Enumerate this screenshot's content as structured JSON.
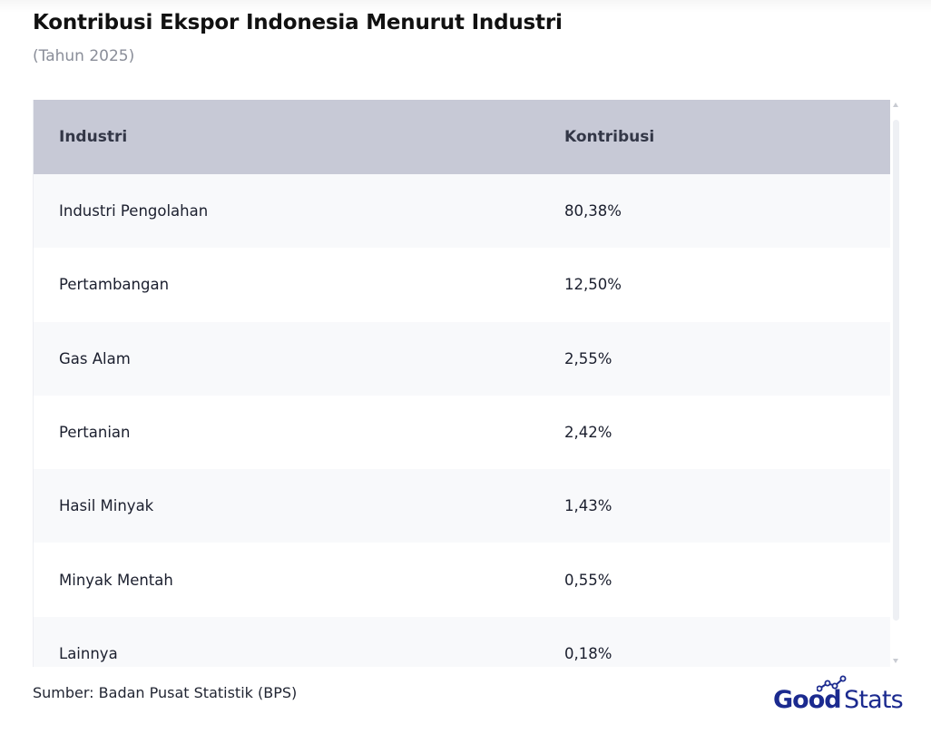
{
  "header": {
    "title": "Kontribusi Ekspor Indonesia Menurut Industri",
    "subtitle": "(Tahun 2025)"
  },
  "table": {
    "columns": [
      "Industri",
      "Kontribusi"
    ],
    "rows": [
      {
        "industri": "Industri Pengolahan",
        "kontribusi": "80,38%"
      },
      {
        "industri": "Pertambangan",
        "kontribusi": "12,50%"
      },
      {
        "industri": "Gas Alam",
        "kontribusi": "2,55%"
      },
      {
        "industri": "Pertanian",
        "kontribusi": "2,42%"
      },
      {
        "industri": "Hasil Minyak",
        "kontribusi": "1,43%"
      },
      {
        "industri": "Minyak Mentah",
        "kontribusi": "0,55%"
      },
      {
        "industri": "Lainnya",
        "kontribusi": "0,18%"
      }
    ]
  },
  "footer": {
    "source": "Sumber: Badan Pusat Statistik (BPS)",
    "logo_part1": "Good",
    "logo_part2": "Stats"
  },
  "colors": {
    "header_bg": "#c7c9d6",
    "row_alt_bg": "#f8f9fb",
    "logo_blue": "#1b2a8f"
  },
  "chart_data": {
    "type": "table",
    "title": "Kontribusi Ekspor Indonesia Menurut Industri",
    "subtitle": "(Tahun 2025)",
    "columns": [
      "Industri",
      "Kontribusi"
    ],
    "categories": [
      "Industri Pengolahan",
      "Pertambangan",
      "Gas Alam",
      "Pertanian",
      "Hasil Minyak",
      "Minyak Mentah",
      "Lainnya"
    ],
    "values": [
      80.38,
      12.5,
      2.55,
      2.42,
      1.43,
      0.55,
      0.18
    ],
    "unit": "%"
  }
}
